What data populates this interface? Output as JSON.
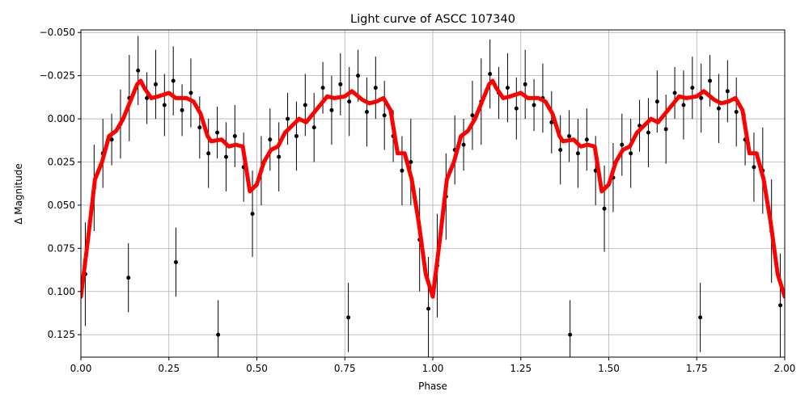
{
  "chart_data": {
    "type": "scatter",
    "title": "Light curve of ASCC 107340",
    "x_label": "Phase",
    "y_label": "Δ Magnitude",
    "xlim": [
      0,
      2
    ],
    "ylim": [
      -0.0515,
      0.138
    ],
    "y_inverted": true,
    "grid": true,
    "xticks": [
      {
        "value": 0,
        "label": "0.00"
      },
      {
        "value": 0.25,
        "label": "0.25"
      },
      {
        "value": 0.5,
        "label": "0.50"
      },
      {
        "value": 0.75,
        "label": "0.75"
      },
      {
        "value": 1,
        "label": "1.00"
      },
      {
        "value": 1.25,
        "label": "1.25"
      },
      {
        "value": 1.5,
        "label": "1.50"
      },
      {
        "value": 1.75,
        "label": "1.75"
      },
      {
        "value": 2,
        "label": "2.00"
      }
    ],
    "yticks": [
      {
        "value": -0.05,
        "label": "−0.050"
      },
      {
        "value": -0.025,
        "label": "−0.025"
      },
      {
        "value": 0,
        "label": "0.000"
      },
      {
        "value": 0.025,
        "label": "0.025"
      },
      {
        "value": 0.05,
        "label": "0.050"
      },
      {
        "value": 0.075,
        "label": "0.075"
      },
      {
        "value": 0.1,
        "label": "0.100"
      },
      {
        "value": 0.125,
        "label": "0.125"
      }
    ],
    "series": [
      {
        "kind": "errorbar",
        "color": "#000000",
        "x": [
          0.0125,
          0.0375,
          0.0625,
          0.0875,
          0.1125,
          0.1375,
          0.1625,
          0.1875,
          0.2125,
          0.2375,
          0.2625,
          0.2875,
          0.3125,
          0.3375,
          0.3625,
          0.3875,
          0.4125,
          0.4375,
          0.4625,
          0.4875,
          0.5125,
          0.5375,
          0.5625,
          0.5875,
          0.6125,
          0.6375,
          0.6625,
          0.6875,
          0.7125,
          0.7375,
          0.7625,
          0.7875,
          0.8125,
          0.8375,
          0.8625,
          0.8875,
          0.9125,
          0.9375,
          0.9625,
          0.9875,
          1.0125,
          1.0375,
          1.0625,
          1.0875,
          1.1125,
          1.1375,
          1.1625,
          1.1875,
          1.2125,
          1.2375,
          1.2625,
          1.2875,
          1.3125,
          1.3375,
          1.3625,
          1.3875,
          1.4125,
          1.4375,
          1.4625,
          1.4875,
          1.5125,
          1.5375,
          1.5625,
          1.5875,
          1.6125,
          1.6375,
          1.6625,
          1.6875,
          1.7125,
          1.7375,
          1.7625,
          1.7875,
          1.8125,
          1.8375,
          1.8625,
          1.8875,
          1.9125,
          1.9375,
          1.9625,
          1.9875,
          0.135,
          0.27,
          0.39,
          0.76,
          1.39,
          1.76
        ],
        "values": [
          0.09,
          0.04,
          0.02,
          0.012,
          0.003,
          -0.012,
          -0.028,
          -0.012,
          -0.02,
          -0.008,
          -0.022,
          -0.005,
          -0.015,
          0.005,
          0.02,
          0.008,
          0.022,
          0.01,
          0.028,
          0.055,
          0.03,
          0.012,
          0.022,
          0.0,
          0.01,
          -0.008,
          0.005,
          -0.018,
          -0.005,
          -0.02,
          -0.01,
          -0.025,
          -0.004,
          -0.018,
          -0.002,
          0.01,
          0.03,
          0.025,
          0.07,
          0.11,
          0.085,
          0.045,
          0.018,
          0.015,
          -0.002,
          -0.01,
          -0.026,
          -0.015,
          -0.018,
          -0.006,
          -0.02,
          -0.008,
          -0.012,
          0.002,
          0.018,
          0.01,
          0.02,
          0.012,
          0.03,
          0.052,
          0.034,
          0.015,
          0.02,
          0.004,
          0.008,
          -0.01,
          0.006,
          -0.015,
          -0.008,
          -0.018,
          -0.012,
          -0.022,
          -0.006,
          -0.016,
          -0.004,
          0.012,
          0.028,
          0.03,
          0.065,
          0.108,
          0.092,
          0.083,
          0.125,
          0.115,
          0.125,
          0.115
        ],
        "errors": [
          0.03,
          0.025,
          0.02,
          0.015,
          0.02,
          0.025,
          0.02,
          0.015,
          0.02,
          0.018,
          0.02,
          0.015,
          0.02,
          0.018,
          0.02,
          0.015,
          0.02,
          0.018,
          0.02,
          0.025,
          0.02,
          0.018,
          0.02,
          0.015,
          0.02,
          0.018,
          0.02,
          0.015,
          0.02,
          0.018,
          0.02,
          0.015,
          0.02,
          0.018,
          0.02,
          0.015,
          0.02,
          0.025,
          0.03,
          0.03,
          0.03,
          0.025,
          0.02,
          0.015,
          0.02,
          0.025,
          0.02,
          0.015,
          0.02,
          0.018,
          0.02,
          0.015,
          0.02,
          0.018,
          0.02,
          0.015,
          0.02,
          0.018,
          0.02,
          0.025,
          0.02,
          0.018,
          0.02,
          0.015,
          0.02,
          0.018,
          0.02,
          0.015,
          0.02,
          0.018,
          0.02,
          0.015,
          0.02,
          0.018,
          0.02,
          0.015,
          0.02,
          0.025,
          0.03,
          0.03,
          0.02,
          0.02,
          0.02,
          0.02,
          0.02,
          0.02
        ]
      },
      {
        "kind": "line",
        "color": "#ff0000",
        "x": [
          0,
          0.02,
          0.04,
          0.06,
          0.08,
          0.1,
          0.12,
          0.14,
          0.16,
          0.17,
          0.18,
          0.2,
          0.22,
          0.25,
          0.27,
          0.3,
          0.32,
          0.34,
          0.36,
          0.37,
          0.4,
          0.42,
          0.44,
          0.46,
          0.48,
          0.5,
          0.52,
          0.54,
          0.56,
          0.58,
          0.6,
          0.62,
          0.64,
          0.66,
          0.68,
          0.7,
          0.72,
          0.75,
          0.77,
          0.8,
          0.82,
          0.84,
          0.86,
          0.88,
          0.9,
          0.92,
          0.94,
          0.96,
          0.98,
          1.0,
          1.02,
          1.04,
          1.06,
          1.08,
          1.1,
          1.12,
          1.14,
          1.16,
          1.17,
          1.18,
          1.2,
          1.22,
          1.25,
          1.27,
          1.3,
          1.32,
          1.34,
          1.36,
          1.37,
          1.4,
          1.42,
          1.44,
          1.46,
          1.48,
          1.5,
          1.52,
          1.54,
          1.56,
          1.58,
          1.6,
          1.62,
          1.64,
          1.66,
          1.68,
          1.7,
          1.72,
          1.75,
          1.77,
          1.8,
          1.82,
          1.84,
          1.86,
          1.88,
          1.9,
          1.92,
          1.94,
          1.96,
          1.98,
          2.0
        ],
        "values": [
          0.103,
          0.07,
          0.035,
          0.025,
          0.01,
          0.007,
          0.0,
          -0.01,
          -0.02,
          -0.022,
          -0.018,
          -0.012,
          -0.013,
          -0.015,
          -0.012,
          -0.012,
          -0.01,
          -0.003,
          0.01,
          0.013,
          0.012,
          0.016,
          0.015,
          0.016,
          0.042,
          0.038,
          0.025,
          0.018,
          0.016,
          0.008,
          0.004,
          0.0,
          0.002,
          -0.003,
          -0.008,
          -0.013,
          -0.012,
          -0.013,
          -0.016,
          -0.011,
          -0.009,
          -0.01,
          -0.012,
          -0.005,
          0.02,
          0.02,
          0.035,
          0.06,
          0.09,
          0.103,
          0.07,
          0.035,
          0.025,
          0.01,
          0.007,
          0.0,
          -0.01,
          -0.02,
          -0.022,
          -0.018,
          -0.012,
          -0.013,
          -0.015,
          -0.012,
          -0.012,
          -0.01,
          -0.003,
          0.01,
          0.013,
          0.012,
          0.016,
          0.015,
          0.016,
          0.042,
          0.038,
          0.025,
          0.018,
          0.016,
          0.008,
          0.004,
          0.0,
          0.002,
          -0.003,
          -0.008,
          -0.013,
          -0.012,
          -0.013,
          -0.016,
          -0.011,
          -0.009,
          -0.01,
          -0.012,
          -0.005,
          0.02,
          0.02,
          0.035,
          0.06,
          0.09,
          0.103
        ]
      }
    ]
  }
}
